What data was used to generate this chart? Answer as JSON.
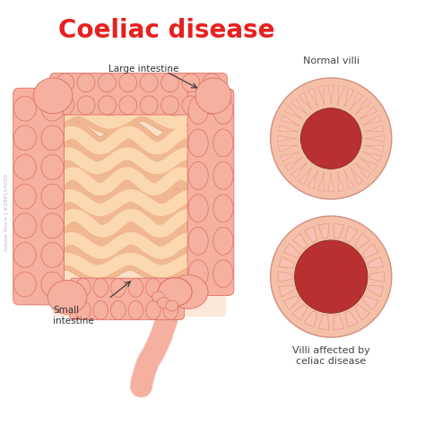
{
  "title": "Coeliac disease",
  "title_color": "#e82020",
  "title_fontsize": 20,
  "bg_color": "#ffffff",
  "label_fontsize": 7.5,
  "label_color": "#333333",
  "label_large": "Large intestine",
  "label_small": "Small\nintestine",
  "label_normal": "Normal villi",
  "label_celiac": "Villi affected by\nceliac disease",
  "intestine_pink": "#f5b0a0",
  "intestine_light": "#f8d0c0",
  "intestine_orange": "#e8904a",
  "intestine_cream": "#fce8d8",
  "intestine_dark_edge": "#e07060",
  "small_int_fill": "#f0a878",
  "small_int_light": "#fce8d8",
  "circle_outer_peach": "#f5c0a8",
  "circle_mid_pink": "#f0a090",
  "circle_lumen_dark": "#b83030",
  "circle_villi_light": "#f8c8b8",
  "circle_villi_pink": "#f0a898",
  "watermark_color": "#999999"
}
